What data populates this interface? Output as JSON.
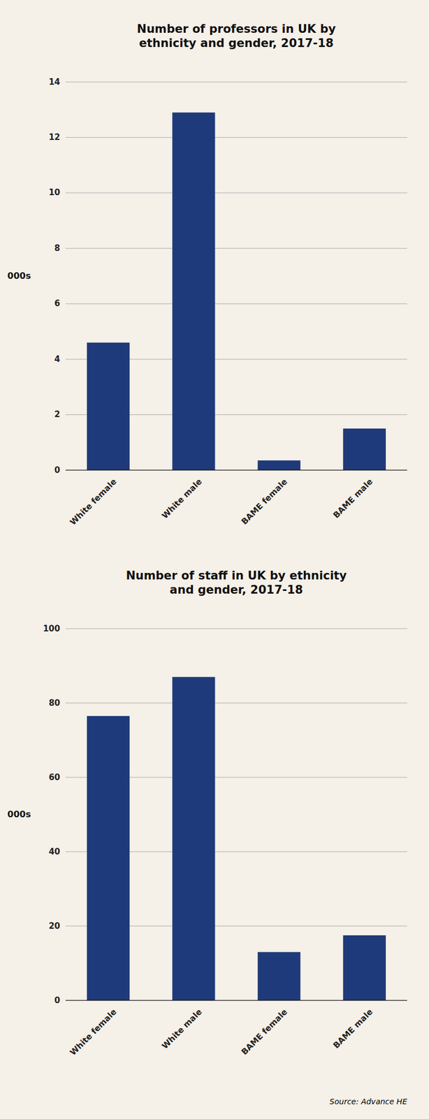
{
  "chart_data": [
    {
      "type": "bar",
      "title": "Number of professors in UK by\nethnicity and gender, 2017-18",
      "categories": [
        "White female",
        "White male",
        "BAME female",
        "BAME male"
      ],
      "values": [
        4.6,
        12.9,
        0.35,
        1.5
      ],
      "color": "#1f3a7a",
      "ylim": [
        0,
        14
      ],
      "yticks": [
        0,
        2,
        4,
        6,
        8,
        10,
        12,
        14
      ],
      "ylabel": "000s",
      "grid": true
    },
    {
      "type": "bar",
      "title": "Number of staff in UK by ethnicity\nand gender, 2017-18",
      "categories": [
        "White female",
        "White male",
        "BAME female",
        "BAME male"
      ],
      "values": [
        76.5,
        87.0,
        13.0,
        17.5
      ],
      "color": "#1f3a7a",
      "ylim": [
        0,
        100
      ],
      "yticks": [
        0,
        20,
        40,
        60,
        80,
        100
      ],
      "ylabel": "000s",
      "grid": true,
      "source": "Source: Advance HE"
    }
  ]
}
